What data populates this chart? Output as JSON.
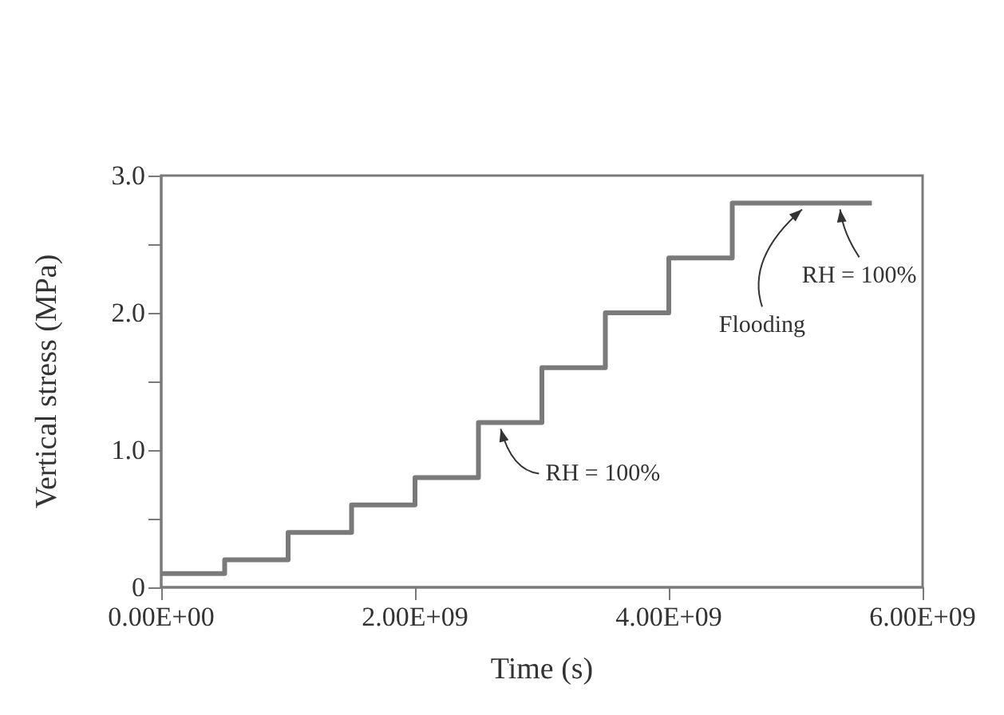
{
  "chart_data": {
    "type": "step",
    "xlabel": "Time (s)",
    "ylabel": "Vertical stress (MPa)",
    "x": [
      0,
      500000000,
      1000000000,
      1500000000,
      2000000000,
      2500000000,
      3000000000,
      3500000000,
      4000000000,
      4500000000,
      5600000000
    ],
    "series": [
      {
        "color": "#7a7a7a",
        "values": [
          0.1,
          0.2,
          0.4,
          0.6,
          0.8,
          1.2,
          1.6,
          2.0,
          2.4,
          2.8,
          2.8
        ]
      }
    ],
    "xlim": [
      0,
      6000000000
    ],
    "xticks": [
      {
        "value": 0,
        "label": "0.00E+00"
      },
      {
        "value": 2000000000,
        "label": "2.00E+09"
      },
      {
        "value": 4000000000,
        "label": "4.00E+09"
      },
      {
        "value": 6000000000,
        "label": "6.00E+09"
      }
    ],
    "ylim": [
      0,
      3
    ],
    "yticks": [
      {
        "value": 0,
        "label": "0"
      },
      {
        "value": 0.5,
        "label": null
      },
      {
        "value": 1,
        "label": "1.0"
      },
      {
        "value": 1.5,
        "label": null
      },
      {
        "value": 2,
        "label": "2.0"
      },
      {
        "value": 2.5,
        "label": null
      },
      {
        "value": 3,
        "label": "3.0"
      }
    ],
    "annotations": [
      {
        "text": "RH = 100%",
        "x": 2600000000,
        "y": 1.2
      },
      {
        "text": "Flooding",
        "x": 5050000000,
        "y": 2.8
      },
      {
        "text": "RH = 100%",
        "x": 5350000000,
        "y": 2.8
      }
    ],
    "grid": false,
    "marker": "none",
    "line_style": "solid"
  }
}
